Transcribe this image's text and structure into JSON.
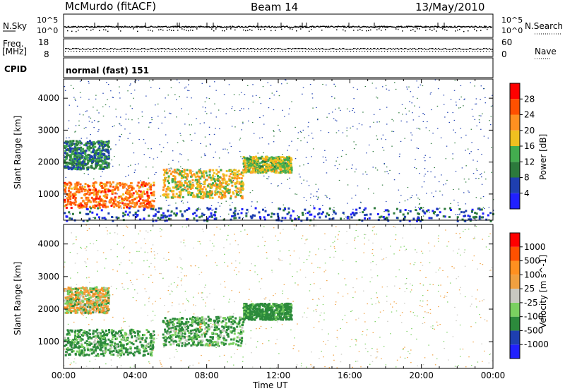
{
  "header": {
    "station": "McMurdo (fitACF)",
    "beam": "Beam 14",
    "date": "13/May/2010"
  },
  "noise_panel": {
    "left_label": "N.Sky",
    "right_label": "N.Search",
    "left_ticks": [
      "10^5",
      "10^0"
    ],
    "right_ticks": [
      "10^5",
      "10^0"
    ]
  },
  "freq_panel": {
    "left_label": "Freq.",
    "left_unit": "[MHz]",
    "right_label": "Nave",
    "left_ticks": [
      "18",
      "8"
    ],
    "right_ticks": [
      "60",
      "0"
    ]
  },
  "cpid": {
    "label": "CPID",
    "value": "normal (fast) 151"
  },
  "time_axis": {
    "label": "Time UT",
    "ticks": [
      "00:00",
      "04:00",
      "08:00",
      "12:00",
      "16:00",
      "20:00",
      "00:00"
    ]
  },
  "colors": {
    "power": [
      "#2020ff",
      "#1e3fb0",
      "#2c7a3c",
      "#43ad4f",
      "#f0c020",
      "#ff9020",
      "#ff5000",
      "#ff0000"
    ],
    "velocity": [
      "#ff0000",
      "#ff5000",
      "#ff9020",
      "#f0a040",
      "#c8c8c0",
      "#7ad060",
      "#2c8a3c",
      "#1e3fb0",
      "#2020ff"
    ]
  },
  "chart_data": [
    {
      "type": "heatmap",
      "title": "Power",
      "xlabel": "Time UT",
      "ylabel": "Slant Range [km]",
      "xlim": [
        "00:00",
        "24:00"
      ],
      "ylim": [
        180,
        4600
      ],
      "yticks": [
        "1000",
        "2000",
        "3000",
        "4000"
      ],
      "colorbar": {
        "label": "Power [dB]",
        "range": [
          0,
          32
        ],
        "ticks": [
          "4",
          "8",
          "12",
          "16",
          "20",
          "24",
          "28"
        ]
      },
      "features": [
        {
          "t_start": 0.0,
          "t_end": 5.0,
          "r_start": 600,
          "r_end": 1400,
          "value": 24
        },
        {
          "t_start": 0.0,
          "t_end": 2.5,
          "r_start": 1800,
          "r_end": 2700,
          "value": 10
        },
        {
          "t_start": 5.5,
          "t_end": 10.0,
          "r_start": 900,
          "r_end": 1800,
          "value": 18
        },
        {
          "t_start": 10.0,
          "t_end": 12.7,
          "r_start": 1700,
          "r_end": 2200,
          "value": 16
        },
        {
          "t_start": 0.0,
          "t_end": 24.0,
          "r_start": 180,
          "r_end": 600,
          "value": 6
        }
      ]
    },
    {
      "type": "heatmap",
      "title": "Velocity",
      "xlabel": "Time UT",
      "ylabel": "Slant Range [km]",
      "xlim": [
        "00:00",
        "24:00"
      ],
      "ylim": [
        180,
        4600
      ],
      "yticks": [
        "1000",
        "2000",
        "3000",
        "4000"
      ],
      "colorbar": {
        "label": "Velocity [m s^-1]",
        "ticks": [
          "1000",
          "500",
          "100",
          "25",
          "-25",
          "-100",
          "-500",
          "-1000"
        ]
      },
      "features": [
        {
          "t_start": 0.0,
          "t_end": 5.0,
          "r_start": 600,
          "r_end": 1400,
          "value": 150
        },
        {
          "t_start": 0.0,
          "t_end": 2.5,
          "r_start": 1900,
          "r_end": 2700,
          "value": 0
        },
        {
          "t_start": 5.5,
          "t_end": 10.0,
          "r_start": 900,
          "r_end": 1800,
          "value": 120
        },
        {
          "t_start": 10.0,
          "t_end": 12.7,
          "r_start": 1700,
          "r_end": 2200,
          "value": 200
        }
      ]
    }
  ]
}
